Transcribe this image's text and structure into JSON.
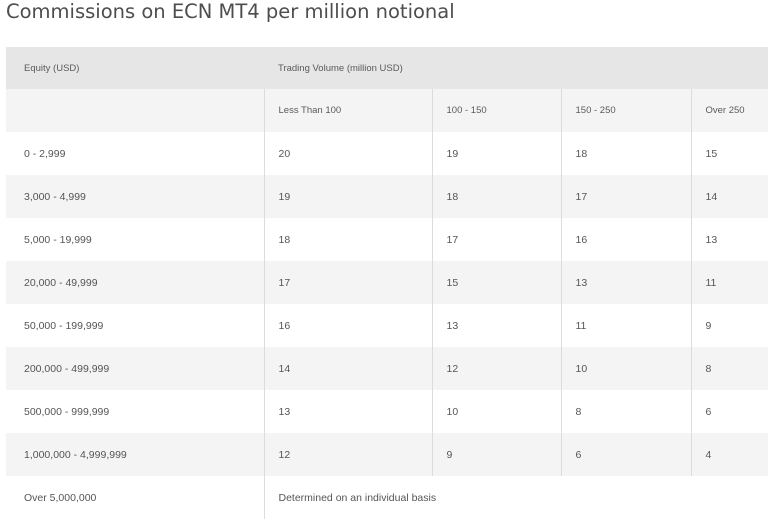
{
  "title": "Commissions on ECN MT4 per million notional",
  "table": {
    "equity_header": "Equity (USD)",
    "volume_header": "Trading Volume (million USD)",
    "volume_columns": [
      "Less Than 100",
      "100 - 150",
      "150 - 250",
      "Over 250"
    ],
    "rows": [
      {
        "equity": "0 - 2,999",
        "values": [
          "20",
          "19",
          "18",
          "15"
        ]
      },
      {
        "equity": "3,000 - 4,999",
        "values": [
          "19",
          "18",
          "17",
          "14"
        ]
      },
      {
        "equity": "5,000 - 19,999",
        "values": [
          "18",
          "17",
          "16",
          "13"
        ]
      },
      {
        "equity": "20,000 - 49,999",
        "values": [
          "17",
          "15",
          "13",
          "11"
        ]
      },
      {
        "equity": "50,000 - 199,999",
        "values": [
          "16",
          "13",
          "11",
          "9"
        ]
      },
      {
        "equity": "200,000 - 499,999",
        "values": [
          "14",
          "12",
          "10",
          "8"
        ]
      },
      {
        "equity": "500,000 - 999,999",
        "values": [
          "13",
          "10",
          "8",
          "6"
        ]
      },
      {
        "equity": "1,000,000 - 4,999,999",
        "values": [
          "12",
          "9",
          "6",
          "4"
        ]
      }
    ],
    "last_row": {
      "equity": "Over 5,000,000",
      "note": "Determined on an individual basis"
    }
  }
}
